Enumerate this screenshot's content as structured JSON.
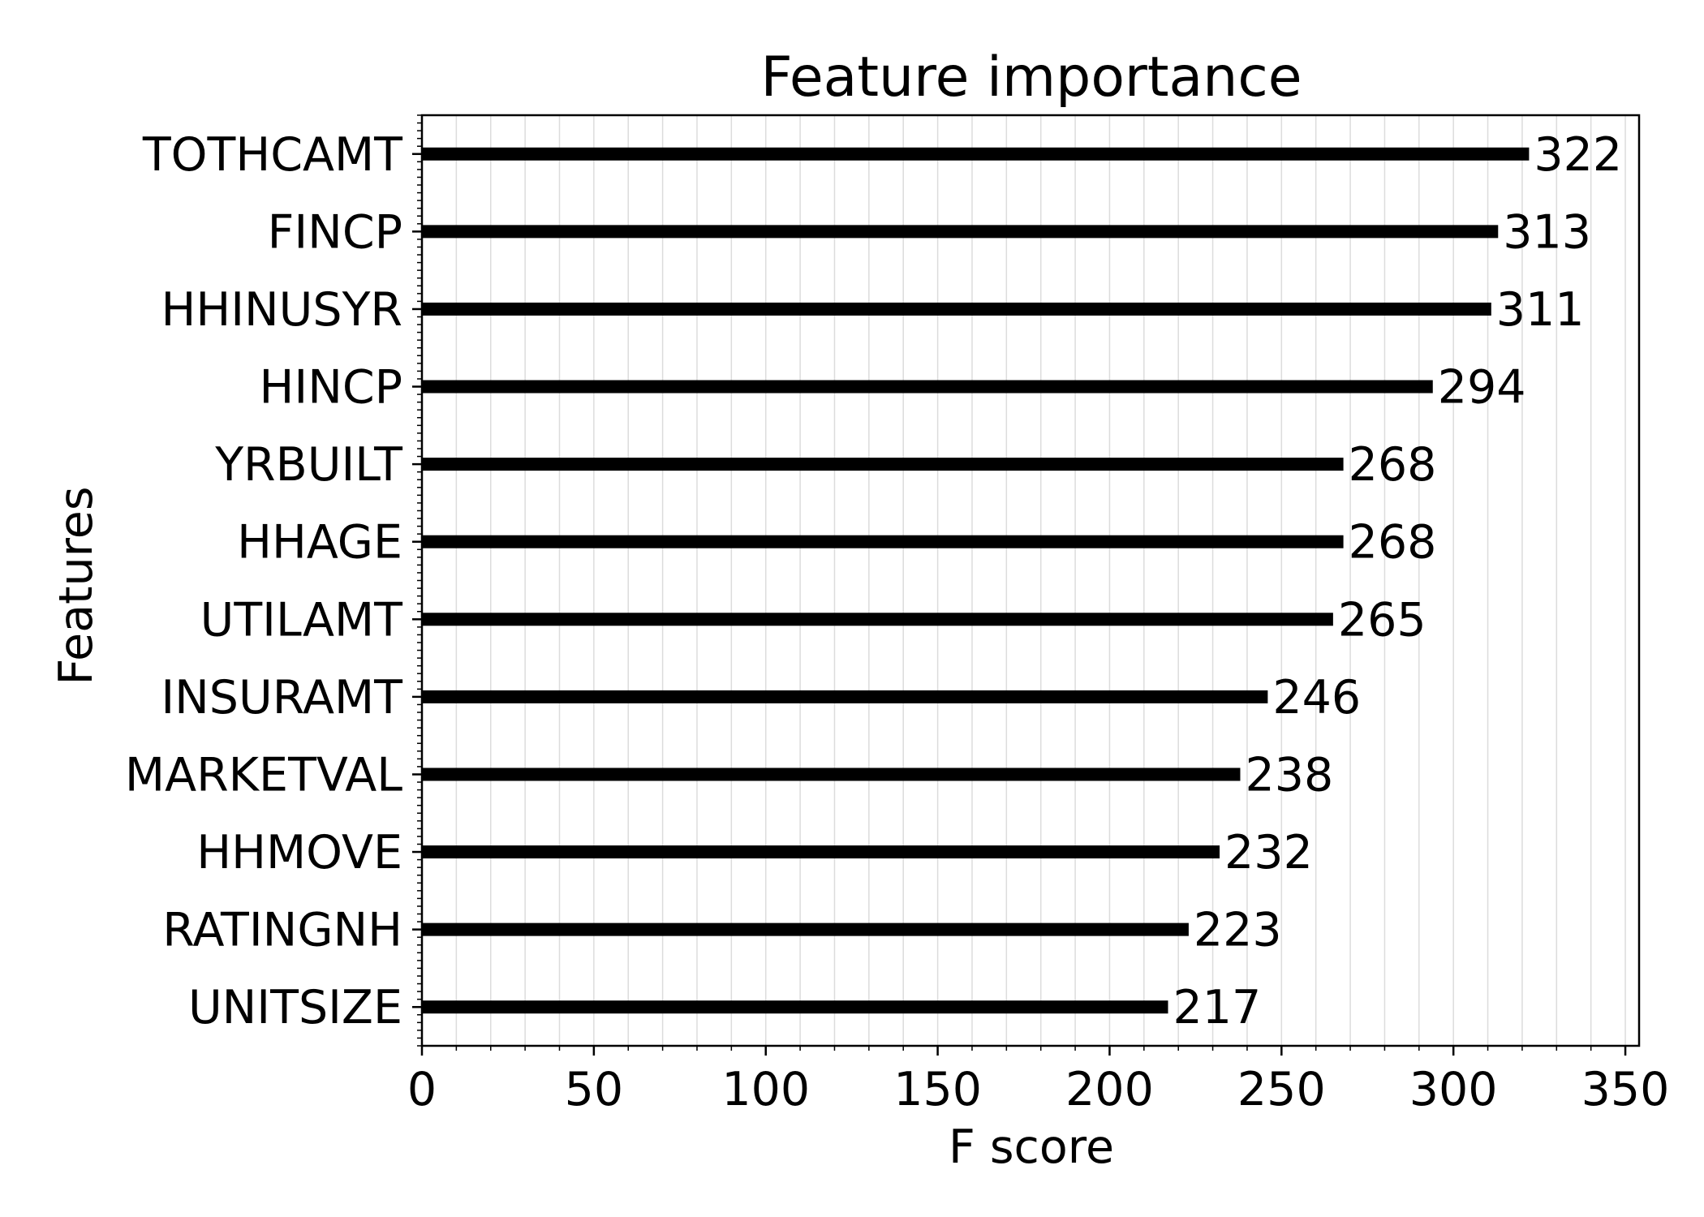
{
  "chart_data": {
    "type": "bar",
    "orientation": "horizontal",
    "title": "Feature importance",
    "xlabel": "F score",
    "ylabel": "Features",
    "xlim": [
      0,
      354
    ],
    "x_ticks": [
      0,
      50,
      100,
      150,
      200,
      250,
      300,
      350
    ],
    "x_minor_step": 10,
    "grid": "vertical",
    "bar_color": "#000000",
    "categories": [
      "TOTHCAMT",
      "FINCP",
      "HHINUSYR",
      "HINCP",
      "YRBUILT",
      "HHAGE",
      "UTILAMT",
      "INSURAMT",
      "MARKETVAL",
      "HHMOVE",
      "RATINGNH",
      "UNITSIZE"
    ],
    "values": [
      322,
      313,
      311,
      294,
      268,
      268,
      265,
      246,
      238,
      232,
      223,
      217
    ],
    "data_labels": [
      "322",
      "313",
      "311",
      "294",
      "268",
      "268",
      "265",
      "246",
      "238",
      "232",
      "223",
      "217"
    ]
  }
}
